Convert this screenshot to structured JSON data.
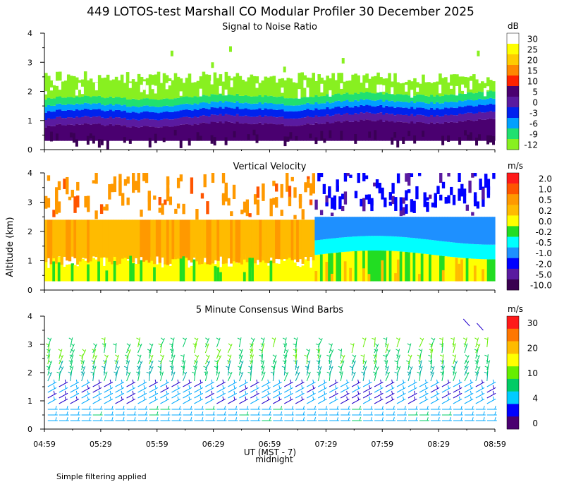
{
  "title": "449 LOTOS-test Marshall CO Modular Profiler 30 December 2025",
  "ylabel": "Altitude (km)",
  "xlabel": "UT  (MST - 7)",
  "midnight_label": "midnight",
  "footnote": "Simple filtering applied",
  "time_ticks": [
    "04:59",
    "05:29",
    "05:59",
    "06:29",
    "06:59",
    "07:29",
    "07:59",
    "08:29",
    "08:59"
  ],
  "chart_data": [
    {
      "type": "heatmap",
      "title": "Signal to Noise Ratio",
      "xlabel": "UT (MST - 7)",
      "ylabel": "Altitude (km)",
      "xlim": [
        "04:59",
        "08:59"
      ],
      "ylim": [
        0,
        4
      ],
      "y_ticks": [
        "0",
        "1",
        "2",
        "3",
        "4"
      ],
      "colorbar": {
        "unit": "dB",
        "labels": [
          "30",
          "25",
          "20",
          "15",
          "10",
          "5",
          "0",
          "-3",
          "-6",
          "-9",
          "-12"
        ],
        "colors": [
          "#ffffff",
          "#ffff00",
          "#ffcc00",
          "#ff8800",
          "#ff2200",
          "#4a0070",
          "#5a1aa0",
          "#0022ee",
          "#00a0ff",
          "#20e070",
          "#88f020"
        ]
      },
      "profile": [
        {
          "from_km": 0.3,
          "to_km": 0.8,
          "class": "5"
        },
        {
          "from_km": 0.8,
          "to_km": 1.05,
          "class": "0"
        },
        {
          "from_km": 1.05,
          "to_km": 1.3,
          "class": "-3"
        },
        {
          "from_km": 1.3,
          "to_km": 1.5,
          "class": "-6"
        },
        {
          "from_km": 1.5,
          "to_km": 1.75,
          "class": "-9"
        },
        {
          "from_km": 1.75,
          "to_km": 2.5,
          "class": "-12"
        }
      ]
    },
    {
      "type": "heatmap",
      "title": "Vertical Velocity",
      "xlabel": "UT (MST - 7)",
      "ylabel": "Altitude (km)",
      "xlim": [
        "04:59",
        "08:59"
      ],
      "ylim": [
        0,
        4
      ],
      "y_ticks": [
        "0",
        "1",
        "2",
        "3",
        "4"
      ],
      "colorbar": {
        "unit": "m/s",
        "labels": [
          "2.0",
          "1.0",
          "0.5",
          "0.2",
          "0.0",
          "-0.2",
          "-0.5",
          "-1.0",
          "-2.0",
          "-5.0",
          "-10.0"
        ],
        "colors": [
          "#ff1a1a",
          "#ff5500",
          "#ff9900",
          "#ffbb00",
          "#ffff00",
          "#22dd22",
          "#00ffff",
          "#1e90ff",
          "#0000ff",
          "#5a1aa0",
          "#3a0050"
        ]
      },
      "before_0714": {
        "0.3-1.0_km": "0.0",
        "1.0-2.4_km": "0.2",
        "2.4-4.0_km": "0.5 (sparse)"
      },
      "after_0714": {
        "0.3-1.2_km": "0.0 / -0.2",
        "1.2-1.7_km": "-0.5",
        "1.7-2.5_km": "-1.0",
        "2.5-4.0_km": "-2.0 (sparse)"
      }
    },
    {
      "type": "scatter",
      "title": "5 Minute Consensus Wind Barbs",
      "xlabel": "UT (MST - 7)",
      "ylabel": "Altitude (km)",
      "xlim": [
        "04:59",
        "08:59"
      ],
      "ylim": [
        0,
        4
      ],
      "y_ticks": [
        "0",
        "1",
        "2",
        "3",
        "4"
      ],
      "colorbar": {
        "unit": "m/s",
        "labels": [
          "30",
          "20",
          "10",
          "4",
          "0"
        ],
        "colors": [
          "#ff1a1a",
          "#ff7700",
          "#ffbb00",
          "#ffff00",
          "#66ee00",
          "#00cc66",
          "#00ccff",
          "#0000ff",
          "#4a0070"
        ]
      },
      "barb_levels_km": [
        0.3,
        0.5,
        0.7,
        0.9,
        1.1,
        1.3,
        1.5,
        1.7,
        1.9,
        2.1,
        2.3,
        2.5,
        2.7,
        2.9
      ],
      "speed_by_level_ms": {
        "0.3-0.9_km": 5,
        "0.9-1.6_km": 3,
        "1.6-2.3_km": 7,
        "2.3-3.0_km": 10
      }
    }
  ]
}
